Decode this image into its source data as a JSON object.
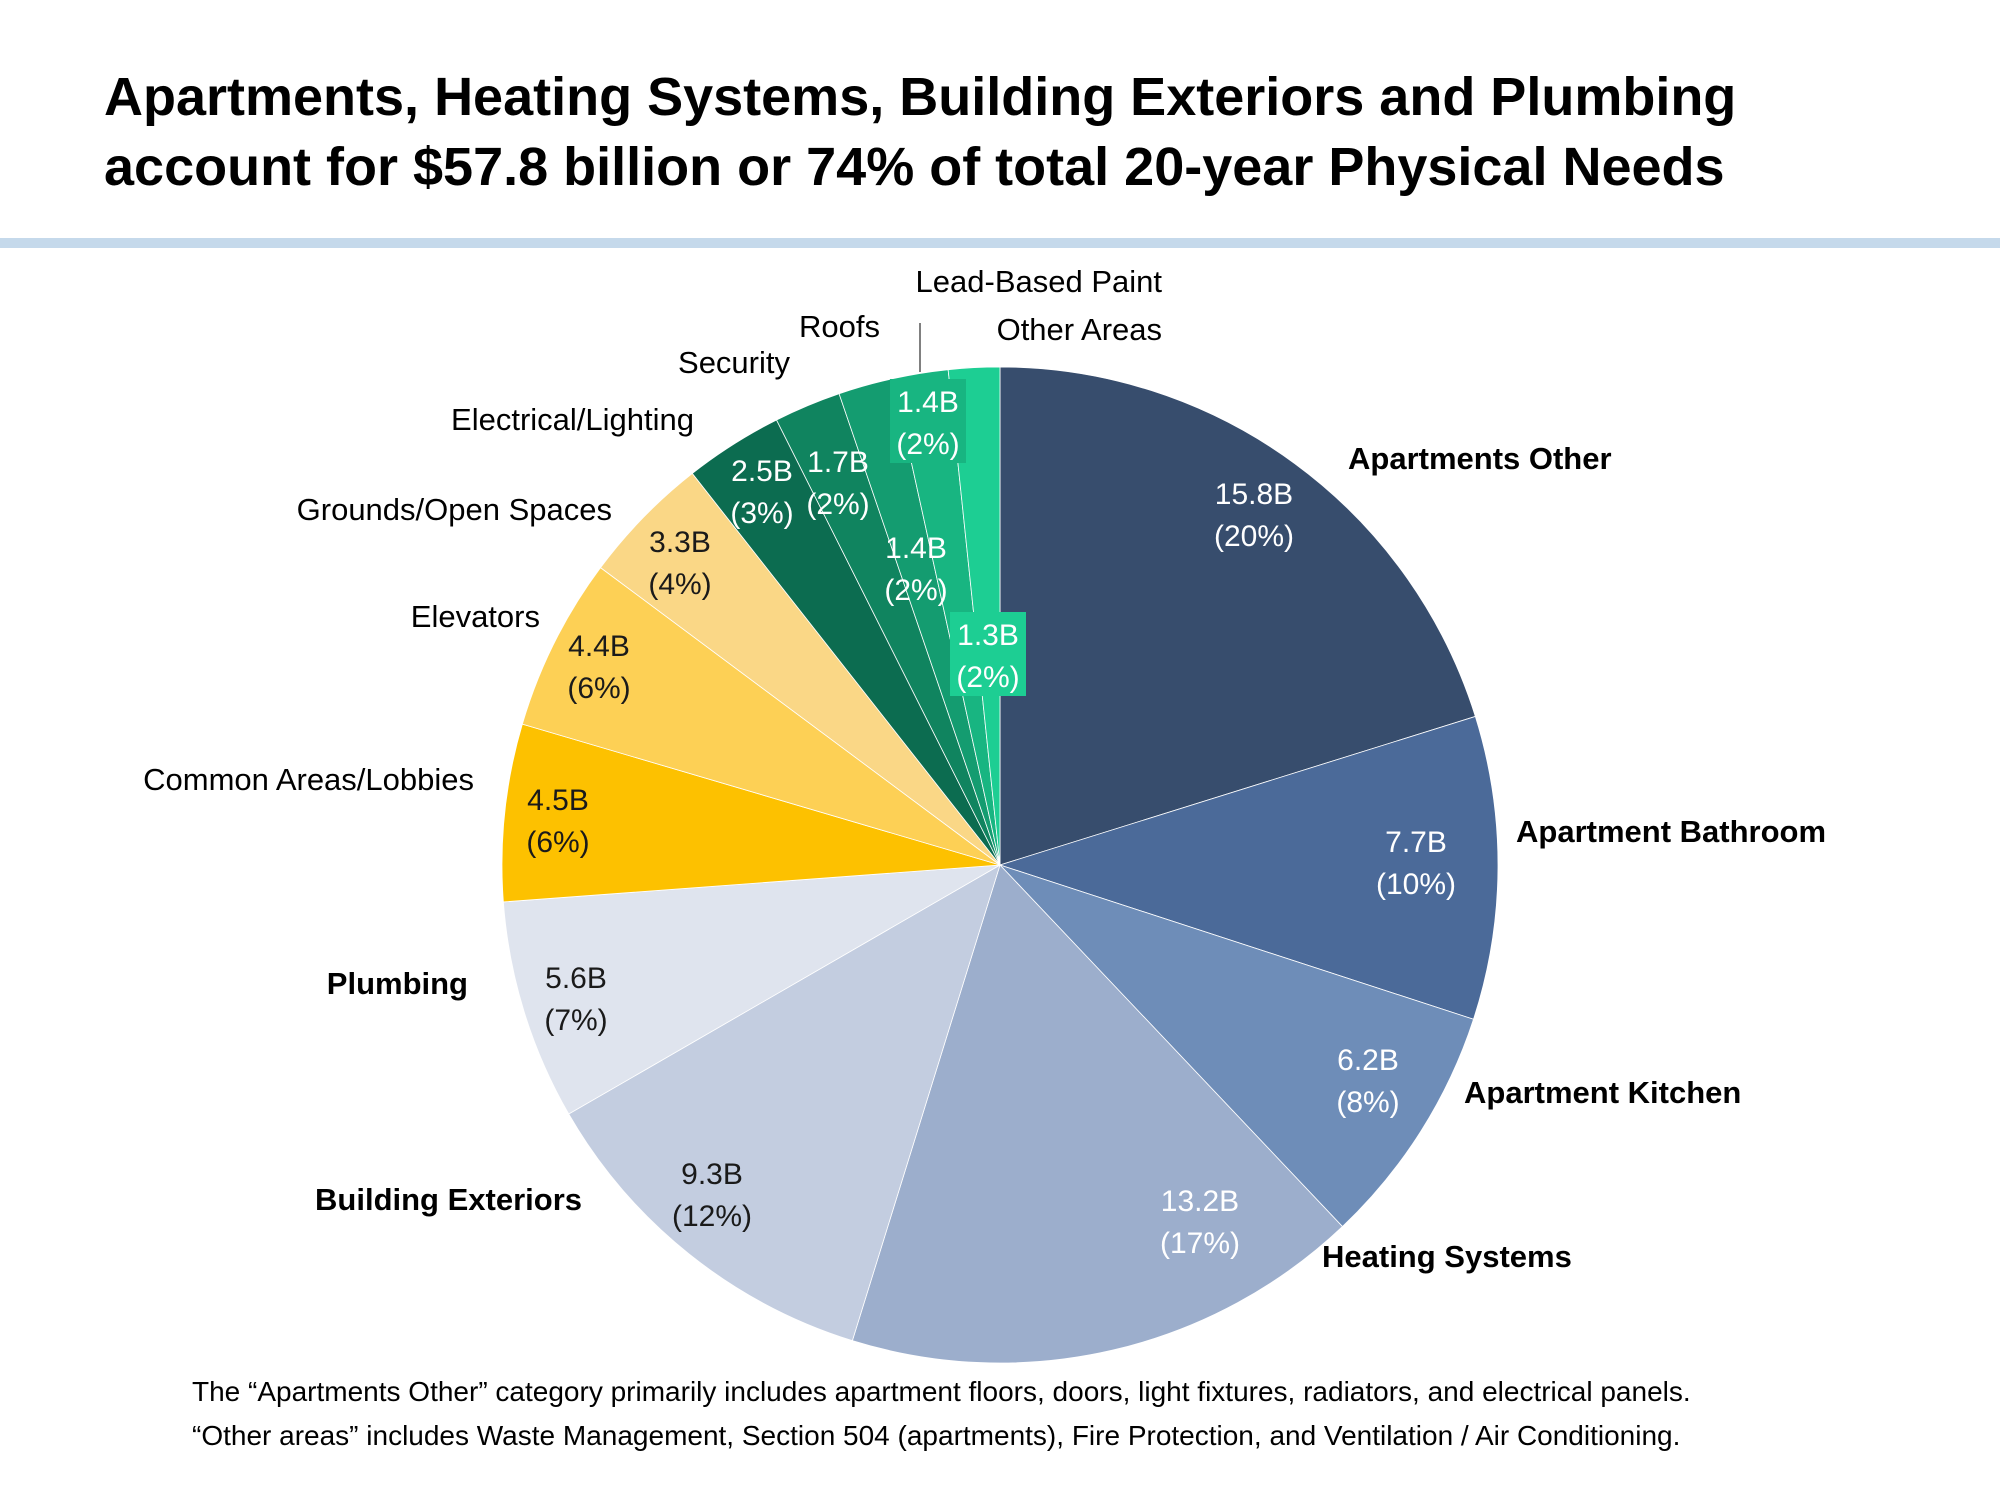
{
  "title": {
    "line1": "Apartments, Heating Systems, Building Exteriors and Plumbing",
    "line2": "account for $57.8 billion or 74% of total 20-year Physical Needs"
  },
  "chart_data": {
    "type": "pie",
    "unit": "billion USD",
    "start_angle": "12 o'clock, clockwise",
    "slices": [
      {
        "name": "Apartments Other",
        "value": 15.8,
        "value_label": "15.8B",
        "pct_label": "(20%)",
        "color": "#374d6d",
        "name_bold": true
      },
      {
        "name": "Apartment Bathroom",
        "value": 7.7,
        "value_label": "7.7B",
        "pct_label": "(10%)",
        "color": "#4b6a99",
        "name_bold": true
      },
      {
        "name": "Apartment Kitchen",
        "value": 6.2,
        "value_label": "6.2B",
        "pct_label": "(8%)",
        "color": "#6e8db8",
        "name_bold": true
      },
      {
        "name": "Heating Systems",
        "value": 13.2,
        "value_label": "13.2B",
        "pct_label": "(17%)",
        "color": "#9caecc",
        "name_bold": true
      },
      {
        "name": "Building Exteriors",
        "value": 9.3,
        "value_label": "9.3B",
        "pct_label": "(12%)",
        "color": "#c3cde0",
        "name_bold": true
      },
      {
        "name": "Plumbing",
        "value": 5.6,
        "value_label": "5.6B",
        "pct_label": "(7%)",
        "color": "#dfe4ee",
        "name_bold": true
      },
      {
        "name": "Common Areas/Lobbies",
        "value": 4.5,
        "value_label": "4.5B",
        "pct_label": "(6%)",
        "color": "#fdc100",
        "name_bold": false
      },
      {
        "name": "Elevators",
        "value": 4.4,
        "value_label": "4.4B",
        "pct_label": "(6%)",
        "color": "#fdd055",
        "name_bold": false
      },
      {
        "name": "Grounds/Open Spaces",
        "value": 3.3,
        "value_label": "3.3B",
        "pct_label": "(4%)",
        "color": "#fad786",
        "name_bold": false
      },
      {
        "name": "Electrical/Lighting",
        "value": 2.5,
        "value_label": "2.5B",
        "pct_label": "(3%)",
        "color": "#0c6c50",
        "name_bold": false
      },
      {
        "name": "Security",
        "value": 1.7,
        "value_label": "1.7B",
        "pct_label": "(2%)",
        "color": "#10845f",
        "name_bold": false
      },
      {
        "name": "Roofs",
        "value": 1.4,
        "value_label": "1.4B",
        "pct_label": "(2%)",
        "color": "#149c70",
        "name_bold": false
      },
      {
        "name": "Lead-Based Paint",
        "value": 1.4,
        "value_label": "1.4B",
        "pct_label": "(2%)",
        "color": "#18b581",
        "name_bold": false
      },
      {
        "name": "Other Areas",
        "value": 1.3,
        "value_label": "1.3B",
        "pct_label": "(2%)",
        "color": "#1dce93",
        "name_bold": false
      }
    ]
  },
  "footnote": {
    "line1": "The “Apartments Other” category primarily includes apartment floors, doors, light fixtures, radiators, and electrical panels.",
    "line2": "“Other areas” includes Waste Management, Section 504 (apartments), Fire Protection, and Ventilation / Air Conditioning."
  }
}
